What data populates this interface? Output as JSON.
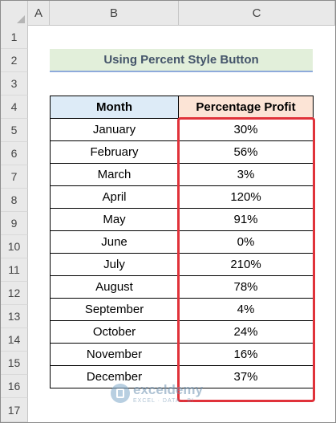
{
  "columns": [
    "A",
    "B",
    "C"
  ],
  "rows": [
    "1",
    "2",
    "3",
    "4",
    "5",
    "6",
    "7",
    "8",
    "9",
    "10",
    "11",
    "12",
    "13",
    "14",
    "15",
    "16",
    "17"
  ],
  "title": "Using Percent Style Button",
  "table": {
    "headers": {
      "month": "Month",
      "profit": "Percentage Profit"
    },
    "rows": [
      {
        "month": "January",
        "profit": "30%"
      },
      {
        "month": "February",
        "profit": "56%"
      },
      {
        "month": "March",
        "profit": "3%"
      },
      {
        "month": "April",
        "profit": "120%"
      },
      {
        "month": "May",
        "profit": "91%"
      },
      {
        "month": "June",
        "profit": "0%"
      },
      {
        "month": "July",
        "profit": "210%"
      },
      {
        "month": "August",
        "profit": "78%"
      },
      {
        "month": "September",
        "profit": "4%"
      },
      {
        "month": "October",
        "profit": "24%"
      },
      {
        "month": "November",
        "profit": "16%"
      },
      {
        "month": "December",
        "profit": "37%"
      }
    ]
  },
  "watermark": {
    "brand": "exceldemy",
    "tagline": "EXCEL · DATA · BI"
  }
}
